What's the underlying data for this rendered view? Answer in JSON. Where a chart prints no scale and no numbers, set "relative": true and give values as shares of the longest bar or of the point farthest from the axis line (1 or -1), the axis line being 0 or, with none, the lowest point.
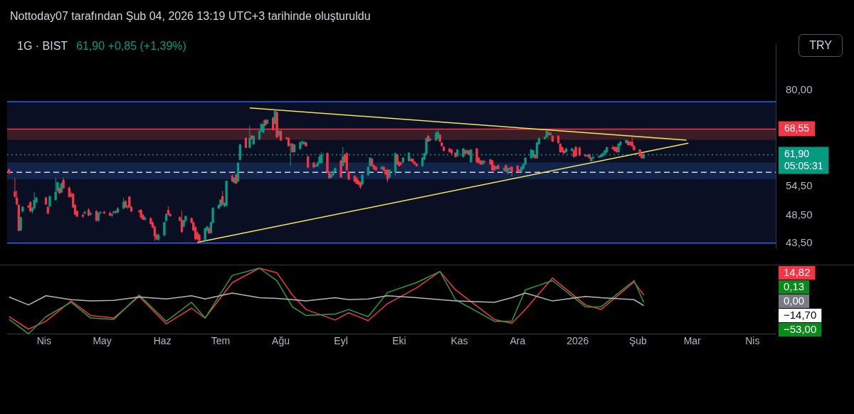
{
  "chart_data": [
    {
      "type": "candlestick",
      "title": "1G · BIST",
      "subtitle": "61,90 +0,85 (+1,39%)",
      "annotations": [
        "Nottoday07 tarafından Şub 04, 2026 13:19 UTC+3 tarihinde oluşturuldu",
        "TRY"
      ],
      "x": [
        "2025-03-14",
        "2025-03-17",
        "2025-03-18",
        "2025-03-19",
        "2025-03-20",
        "2025-03-21",
        "2025-03-24",
        "2025-03-25",
        "2025-03-26",
        "2025-03-27",
        "2025-03-28",
        "2025-04-02",
        "2025-04-03",
        "2025-04-04",
        "2025-04-07",
        "2025-04-08",
        "2025-04-09",
        "2025-04-10",
        "2025-04-11",
        "2025-04-14",
        "2025-04-15",
        "2025-04-16",
        "2025-04-17",
        "2025-04-18",
        "2025-04-21",
        "2025-04-22",
        "2025-04-24",
        "2025-04-25",
        "2025-04-28",
        "2025-04-29",
        "2025-04-30",
        "2025-05-02",
        "2025-05-05",
        "2025-05-06",
        "2025-05-07",
        "2025-05-08",
        "2025-05-09",
        "2025-05-12",
        "2025-05-13",
        "2025-05-14",
        "2025-05-15",
        "2025-05-16",
        "2025-05-20",
        "2025-05-21",
        "2025-05-22",
        "2025-05-23",
        "2025-05-26",
        "2025-05-27",
        "2025-05-28",
        "2025-05-29",
        "2025-05-30",
        "2025-06-02",
        "2025-06-03",
        "2025-06-04",
        "2025-06-05",
        "2025-06-10",
        "2025-06-11",
        "2025-06-12",
        "2025-06-13",
        "2025-06-16",
        "2025-06-17",
        "2025-06-18",
        "2025-06-19",
        "2025-06-20",
        "2025-06-23",
        "2025-06-24",
        "2025-06-25",
        "2025-06-26",
        "2025-06-27",
        "2025-06-30",
        "2025-07-01",
        "2025-07-02",
        "2025-07-03",
        "2025-07-04",
        "2025-07-07",
        "2025-07-08",
        "2025-07-09",
        "2025-07-10",
        "2025-07-11",
        "2025-07-14",
        "2025-07-16",
        "2025-07-17",
        "2025-07-18",
        "2025-07-21",
        "2025-07-22",
        "2025-07-23",
        "2025-07-24",
        "2025-07-25",
        "2025-07-28",
        "2025-07-29",
        "2025-07-30",
        "2025-07-31",
        "2025-08-01",
        "2025-08-04",
        "2025-08-05",
        "2025-08-06",
        "2025-08-07",
        "2025-08-08",
        "2025-08-11",
        "2025-08-12",
        "2025-08-13",
        "2025-08-14",
        "2025-08-15",
        "2025-08-18",
        "2025-08-19",
        "2025-08-20",
        "2025-08-21",
        "2025-08-22",
        "2025-08-25",
        "2025-08-26",
        "2025-08-27",
        "2025-08-28",
        "2025-08-29",
        "2025-09-01",
        "2025-09-02",
        "2025-09-03",
        "2025-09-04",
        "2025-09-05",
        "2025-09-08",
        "2025-09-09",
        "2025-09-10",
        "2025-09-11",
        "2025-09-12",
        "2025-09-15",
        "2025-09-16",
        "2025-09-17",
        "2025-09-18",
        "2025-09-19",
        "2025-09-22",
        "2025-09-23",
        "2025-09-24",
        "2025-09-25",
        "2025-09-26",
        "2025-09-29",
        "2025-09-30",
        "2025-10-01",
        "2025-10-02",
        "2025-10-03",
        "2025-10-06",
        "2025-10-07",
        "2025-10-08",
        "2025-10-09",
        "2025-10-10",
        "2025-10-13",
        "2025-10-14",
        "2025-10-15",
        "2025-10-16",
        "2025-10-17",
        "2025-10-20",
        "2025-10-21",
        "2025-10-22",
        "2025-10-23",
        "2025-10-24",
        "2025-10-27",
        "2025-10-28",
        "2025-10-30",
        "2025-10-31",
        "2025-11-03",
        "2025-11-04",
        "2025-11-05",
        "2025-11-06",
        "2025-11-07",
        "2025-11-10",
        "2025-11-11",
        "2025-11-12",
        "2025-11-13",
        "2025-11-14",
        "2025-11-17",
        "2025-11-18",
        "2025-11-19",
        "2025-11-20",
        "2025-11-21",
        "2025-11-24",
        "2025-11-25",
        "2025-11-26",
        "2025-11-27",
        "2025-11-28",
        "2025-12-01",
        "2025-12-02",
        "2025-12-03",
        "2025-12-04",
        "2025-12-05",
        "2025-12-08",
        "2025-12-09",
        "2025-12-10",
        "2025-12-11",
        "2025-12-12",
        "2025-12-15",
        "2025-12-16",
        "2025-12-17",
        "2025-12-18",
        "2025-12-19",
        "2025-12-22",
        "2025-12-23",
        "2025-12-24",
        "2025-12-25",
        "2025-12-26",
        "2025-12-29",
        "2025-12-30",
        "2025-12-31",
        "2026-01-02",
        "2026-01-05",
        "2026-01-06",
        "2026-01-07",
        "2026-01-08",
        "2026-01-09",
        "2026-01-12",
        "2026-01-13",
        "2026-01-14",
        "2026-01-15",
        "2026-01-16",
        "2026-01-19",
        "2026-01-20",
        "2026-01-21",
        "2026-01-22",
        "2026-01-23",
        "2026-01-26",
        "2026-01-27",
        "2026-01-28",
        "2026-01-29",
        "2026-01-30",
        "2026-02-02",
        "2026-02-03",
        "2026-02-04"
      ],
      "ohlc": [
        [
          58.3,
          58.6,
          57.2,
          57.6
        ],
        [
          53.4,
          56.4,
          52.0,
          52.4
        ],
        [
          52.1,
          53.6,
          50.6,
          50.8
        ],
        [
          50.6,
          50.8,
          45.6,
          45.7
        ],
        [
          45.8,
          48.3,
          45.6,
          48.2
        ],
        [
          49.4,
          50.5,
          49.1,
          50.2
        ],
        [
          50.4,
          50.7,
          50.0,
          50.2
        ],
        [
          51.2,
          51.4,
          49.2,
          49.4
        ],
        [
          49.4,
          50.2,
          48.9,
          50.0
        ],
        [
          50.0,
          53.3,
          49.8,
          51.6
        ],
        [
          51.2,
          52.3,
          51.0,
          52.1
        ],
        [
          52.1,
          52.4,
          50.6,
          50.8
        ],
        [
          50.2,
          50.4,
          48.8,
          49.0
        ],
        [
          50.4,
          52.6,
          50.2,
          52.4
        ],
        [
          51.7,
          56.4,
          51.5,
          53.3
        ],
        [
          53.6,
          55.6,
          53.3,
          55.4
        ],
        [
          54.2,
          54.4,
          52.9,
          53.1
        ],
        [
          53.3,
          55.3,
          53.1,
          55.2
        ],
        [
          55.9,
          56.5,
          54.0,
          54.2
        ],
        [
          54.2,
          54.6,
          52.2,
          52.3
        ],
        [
          52.9,
          53.4,
          52.2,
          52.4
        ],
        [
          52.9,
          53.1,
          50.0,
          50.2
        ],
        [
          50.6,
          50.8,
          48.6,
          48.8
        ],
        [
          49.4,
          49.6,
          48.2,
          48.4
        ],
        [
          48.6,
          48.9,
          48.1,
          48.4
        ],
        [
          49.0,
          49.5,
          48.7,
          49.2
        ],
        [
          49.6,
          50.0,
          48.4,
          48.6
        ],
        [
          48.8,
          49.2,
          48.5,
          49.0
        ],
        [
          49.4,
          49.6,
          47.4,
          47.6
        ],
        [
          47.6,
          49.2,
          47.3,
          49.0
        ],
        [
          49.1,
          49.4,
          48.8,
          49.2
        ],
        [
          49.2,
          49.5,
          48.8,
          49.0
        ],
        [
          49.0,
          49.3,
          48.4,
          48.6
        ],
        [
          48.6,
          49.0,
          48.2,
          48.8
        ],
        [
          49.1,
          49.5,
          48.9,
          49.3
        ],
        [
          49.3,
          49.6,
          48.9,
          49.1
        ],
        [
          49.2,
          50.2,
          49.0,
          49.9
        ],
        [
          50.0,
          52.1,
          49.8,
          51.2
        ],
        [
          51.4,
          51.6,
          50.0,
          50.2
        ],
        [
          50.2,
          50.6,
          49.8,
          50.4
        ],
        [
          52.3,
          52.5,
          50.0,
          50.2
        ],
        [
          50.2,
          50.4,
          49.2,
          49.4
        ],
        [
          49.4,
          49.7,
          49.0,
          49.3
        ],
        [
          49.6,
          49.8,
          48.0,
          48.2
        ],
        [
          48.6,
          48.8,
          47.7,
          47.8
        ],
        [
          47.8,
          48.4,
          47.6,
          48.1
        ],
        [
          48.0,
          48.2,
          46.8,
          47.0
        ],
        [
          47.2,
          47.4,
          46.2,
          46.3
        ],
        [
          46.4,
          46.6,
          43.9,
          44.7
        ],
        [
          44.9,
          45.2,
          44.0,
          44.2
        ],
        [
          44.1,
          45.2,
          43.9,
          44.9
        ],
        [
          44.9,
          47.4,
          44.7,
          47.2
        ],
        [
          47.6,
          48.9,
          47.3,
          48.8
        ],
        [
          49.6,
          50.4,
          48.6,
          48.8
        ],
        [
          48.8,
          49.0,
          48.3,
          48.5
        ],
        [
          48.2,
          48.4,
          47.4,
          47.6
        ],
        [
          47.6,
          49.5,
          45.3,
          45.5
        ],
        [
          46.5,
          47.8,
          46.2,
          47.6
        ],
        [
          47.6,
          48.6,
          47.3,
          48.4
        ],
        [
          48.0,
          48.2,
          47.0,
          47.2
        ],
        [
          47.2,
          47.4,
          45.6,
          45.8
        ],
        [
          46.3,
          46.5,
          44.0,
          44.2
        ],
        [
          45.3,
          45.6,
          44.0,
          44.2
        ],
        [
          44.9,
          45.1,
          43.6,
          43.9
        ],
        [
          44.0,
          46.2,
          43.8,
          46.1
        ],
        [
          45.8,
          46.6,
          45.5,
          46.4
        ],
        [
          46.1,
          46.3,
          45.1,
          45.3
        ],
        [
          45.3,
          47.4,
          45.1,
          47.2
        ],
        [
          47.2,
          50.2,
          47.0,
          50.0
        ],
        [
          50.0,
          50.8,
          49.8,
          50.6
        ],
        [
          50.4,
          51.8,
          50.2,
          51.7
        ],
        [
          52.4,
          53.6,
          50.6,
          50.8
        ],
        [
          50.4,
          51.2,
          50.2,
          51.0
        ],
        [
          50.6,
          55.8,
          50.4,
          55.7
        ],
        [
          56.8,
          57.2,
          55.5,
          55.7
        ],
        [
          55.4,
          56.6,
          55.2,
          56.4
        ],
        [
          57.1,
          57.4,
          55.0,
          55.2
        ],
        [
          55.7,
          60.0,
          55.5,
          59.9
        ],
        [
          60.7,
          64.7,
          60.5,
          64.4
        ],
        [
          66.1,
          66.4,
          63.5,
          63.7
        ],
        [
          63.7,
          69.6,
          63.5,
          66.1
        ],
        [
          66.7,
          67.0,
          65.8,
          65.9
        ],
        [
          64.6,
          66.9,
          64.4,
          66.7
        ],
        [
          65.9,
          68.2,
          65.6,
          68.0
        ],
        [
          68.0,
          70.2,
          67.8,
          69.9
        ],
        [
          67.7,
          71.0,
          67.5,
          69.9
        ],
        [
          71.0,
          71.4,
          69.4,
          69.6
        ],
        [
          70.1,
          71.3,
          69.9,
          71.1
        ],
        [
          71.7,
          72.0,
          68.2,
          68.4
        ],
        [
          70.1,
          74.3,
          69.9,
          73.7
        ],
        [
          73.3,
          73.6,
          66.1,
          66.4
        ],
        [
          66.9,
          68.2,
          66.6,
          68.0
        ],
        [
          68.0,
          68.3,
          65.4,
          65.6
        ],
        [
          66.2,
          66.5,
          65.7,
          66.0
        ],
        [
          66.1,
          66.4,
          63.9,
          64.1
        ],
        [
          64.4,
          64.9,
          59.2,
          64.6
        ],
        [
          64.6,
          64.9,
          62.4,
          62.6
        ],
        [
          62.6,
          64.6,
          62.4,
          64.4
        ],
        [
          63.4,
          65.4,
          63.2,
          64.9
        ],
        [
          64.9,
          65.6,
          64.4,
          65.1
        ],
        [
          64.6,
          65.3,
          64.4,
          65.1
        ],
        [
          64.9,
          65.2,
          63.9,
          64.1
        ],
        [
          61.4,
          61.7,
          58.6,
          58.9
        ],
        [
          59.9,
          60.2,
          58.6,
          58.9
        ],
        [
          59.1,
          59.5,
          58.9,
          59.3
        ],
        [
          59.2,
          60.2,
          59.0,
          59.9
        ],
        [
          59.9,
          61.6,
          59.7,
          61.4
        ],
        [
          59.9,
          62.6,
          59.7,
          61.9
        ],
        [
          62.2,
          62.5,
          57.5,
          57.8
        ],
        [
          57.8,
          58.0,
          56.2,
          56.4
        ],
        [
          56.6,
          57.3,
          56.3,
          57.2
        ],
        [
          57.1,
          58.1,
          56.9,
          57.9
        ],
        [
          57.9,
          58.8,
          57.7,
          58.6
        ],
        [
          60.4,
          60.7,
          56.4,
          56.6
        ],
        [
          59.3,
          63.8,
          59.1,
          61.4
        ],
        [
          61.9,
          62.2,
          59.9,
          60.1
        ],
        [
          62.2,
          62.5,
          58.0,
          58.2
        ],
        [
          57.8,
          58.0,
          55.9,
          56.1
        ],
        [
          56.8,
          57.1,
          55.5,
          55.7
        ],
        [
          56.4,
          56.7,
          55.0,
          55.2
        ],
        [
          55.8,
          56.0,
          54.8,
          55.0
        ],
        [
          55.4,
          55.6,
          54.0,
          54.4
        ],
        [
          55.0,
          57.3,
          54.8,
          57.1
        ],
        [
          57.1,
          59.1,
          56.9,
          58.9
        ],
        [
          59.2,
          61.3,
          59.0,
          61.1
        ],
        [
          60.8,
          61.1,
          59.0,
          59.2
        ],
        [
          59.3,
          59.5,
          58.3,
          58.5
        ],
        [
          58.9,
          59.2,
          58.0,
          58.2
        ],
        [
          58.5,
          59.2,
          58.3,
          58.9
        ],
        [
          58.9,
          59.2,
          58.0,
          58.2
        ],
        [
          58.2,
          58.4,
          57.0,
          57.3
        ],
        [
          58.2,
          58.5,
          55.4,
          56.1
        ],
        [
          56.6,
          58.4,
          56.3,
          58.2
        ],
        [
          57.8,
          62.4,
          57.0,
          62.2
        ],
        [
          61.9,
          62.1,
          59.4,
          59.6
        ],
        [
          60.1,
          60.3,
          59.0,
          59.2
        ],
        [
          59.9,
          60.2,
          59.4,
          59.6
        ],
        [
          60.1,
          61.3,
          59.9,
          61.1
        ],
        [
          60.4,
          62.6,
          60.2,
          62.3
        ],
        [
          60.8,
          61.2,
          60.2,
          60.4
        ],
        [
          60.8,
          61.0,
          59.9,
          60.1
        ],
        [
          60.1,
          60.3,
          59.4,
          59.6
        ],
        [
          59.6,
          59.8,
          59.0,
          59.2
        ],
        [
          59.2,
          61.3,
          59.0,
          61.1
        ],
        [
          60.8,
          62.4,
          60.6,
          62.2
        ],
        [
          62.2,
          66.3,
          62.0,
          66.1
        ],
        [
          66.7,
          67.0,
          65.1,
          65.3
        ],
        [
          65.6,
          66.1,
          65.3,
          65.9
        ],
        [
          65.6,
          68.0,
          65.4,
          67.5
        ],
        [
          66.1,
          68.4,
          65.9,
          67.7
        ],
        [
          67.0,
          67.2,
          65.1,
          65.3
        ],
        [
          64.9,
          65.1,
          63.9,
          64.1
        ],
        [
          63.8,
          64.0,
          62.7,
          62.9
        ],
        [
          63.4,
          63.6,
          62.4,
          62.6
        ],
        [
          63.1,
          63.3,
          62.1,
          62.3
        ],
        [
          62.3,
          62.5,
          61.2,
          61.4
        ],
        [
          61.6,
          63.3,
          61.4,
          63.1
        ],
        [
          61.4,
          63.6,
          61.2,
          63.4
        ],
        [
          62.9,
          63.3,
          62.0,
          62.2
        ],
        [
          62.3,
          63.2,
          62.0,
          62.9
        ],
        [
          62.9,
          63.1,
          61.7,
          61.9
        ],
        [
          60.1,
          63.3,
          59.9,
          63.1
        ],
        [
          63.4,
          63.6,
          59.9,
          60.1
        ],
        [
          61.1,
          61.3,
          59.7,
          59.9
        ],
        [
          60.4,
          60.6,
          59.4,
          59.6
        ],
        [
          59.6,
          60.6,
          59.4,
          60.4
        ],
        [
          60.2,
          60.6,
          59.9,
          60.1
        ],
        [
          60.7,
          60.9,
          59.4,
          59.6
        ],
        [
          60.4,
          60.6,
          58.0,
          58.2
        ],
        [
          59.2,
          59.4,
          58.0,
          58.2
        ],
        [
          58.5,
          59.2,
          58.3,
          59.0
        ],
        [
          59.3,
          59.5,
          58.3,
          58.5
        ],
        [
          58.2,
          58.9,
          58.0,
          58.6
        ],
        [
          59.3,
          59.5,
          57.7,
          57.9
        ],
        [
          57.5,
          58.8,
          57.3,
          58.6
        ],
        [
          58.6,
          59.0,
          58.2,
          58.4
        ],
        [
          58.9,
          59.1,
          56.8,
          57.9
        ],
        [
          59.2,
          59.4,
          57.7,
          57.9
        ],
        [
          58.2,
          58.4,
          57.6,
          57.8
        ],
        [
          57.9,
          59.1,
          57.7,
          58.9
        ],
        [
          58.6,
          59.8,
          58.4,
          59.6
        ],
        [
          59.6,
          61.3,
          59.4,
          61.1
        ],
        [
          61.1,
          63.3,
          60.9,
          63.1
        ],
        [
          61.4,
          63.1,
          61.2,
          62.9
        ],
        [
          61.9,
          62.1,
          60.9,
          61.1
        ],
        [
          61.1,
          65.1,
          60.9,
          64.9
        ],
        [
          64.6,
          66.3,
          64.4,
          66.1
        ],
        [
          66.0,
          66.6,
          65.7,
          66.4
        ],
        [
          66.4,
          68.2,
          66.2,
          68.0
        ],
        [
          67.5,
          68.2,
          66.8,
          67.0
        ],
        [
          67.0,
          67.8,
          66.8,
          67.5
        ],
        [
          66.7,
          66.9,
          65.1,
          65.3
        ],
        [
          66.7,
          67.0,
          64.7,
          64.9
        ],
        [
          64.6,
          64.8,
          62.4,
          62.6
        ],
        [
          63.7,
          63.9,
          62.4,
          62.6
        ],
        [
          62.9,
          63.1,
          62.1,
          62.3
        ],
        [
          62.6,
          63.6,
          62.4,
          63.4
        ],
        [
          62.9,
          63.6,
          62.7,
          63.4
        ],
        [
          62.9,
          63.2,
          61.2,
          61.4
        ],
        [
          63.8,
          64.1,
          61.4,
          61.6
        ],
        [
          63.6,
          63.9,
          61.5,
          61.8
        ],
        [
          61.8,
          62.1,
          61.3,
          61.6
        ],
        [
          61.6,
          62.0,
          61.4,
          61.8
        ],
        [
          61.9,
          62.1,
          60.9,
          61.1
        ],
        [
          60.4,
          61.3,
          60.2,
          61.1
        ],
        [
          61.1,
          61.5,
          60.9,
          61.3
        ],
        [
          61.3,
          61.7,
          61.1,
          61.5
        ],
        [
          61.4,
          62.1,
          61.2,
          61.9
        ],
        [
          61.6,
          62.4,
          61.4,
          62.2
        ],
        [
          62.2,
          63.1,
          62.0,
          62.9
        ],
        [
          62.6,
          63.9,
          62.4,
          63.7
        ],
        [
          63.7,
          64.3,
          63.2,
          63.4
        ],
        [
          63.8,
          64.0,
          62.7,
          62.9
        ],
        [
          63.7,
          63.9,
          62.4,
          62.6
        ],
        [
          62.6,
          64.8,
          62.4,
          64.6
        ],
        [
          64.4,
          65.4,
          64.2,
          65.1
        ],
        [
          64.9,
          65.8,
          64.7,
          65.6
        ],
        [
          65.3,
          65.6,
          64.2,
          64.4
        ],
        [
          65.1,
          65.3,
          64.2,
          64.4
        ],
        [
          65.1,
          66.4,
          63.9,
          64.1
        ],
        [
          64.1,
          64.3,
          62.9,
          63.1
        ],
        [
          63.1,
          63.3,
          61.4,
          61.6
        ],
        [
          62.2,
          62.4,
          60.9,
          61.1
        ],
        [
          61.1,
          62.3,
          60.8,
          61.9
        ]
      ],
      "series": [
        {
          "type": "line",
          "color": "#f2e55c",
          "x": [
            "2025-07-16",
            "2026-02-26"
          ],
          "values": [
            74.6,
            65.6
          ]
        },
        {
          "type": "line",
          "color": "#f2e55c",
          "x": [
            "2025-06-19",
            "2026-02-27"
          ],
          "values": [
            43.6,
            64.8
          ]
        }
      ],
      "bands": [
        {
          "axis": "y",
          "from": 43.5,
          "to": 76.5,
          "color": "#0a0f24"
        },
        {
          "axis": "y",
          "from": 65.7,
          "to": 68.55,
          "color": "#3b1e25"
        },
        {
          "axis": "y",
          "from": 56.1,
          "to": 60.0,
          "color": "#13244a"
        }
      ],
      "ref_lines": [
        {
          "axis": "y",
          "value": 76.5,
          "label": null,
          "color": "#2962ff",
          "line_style": "solid"
        },
        {
          "axis": "y",
          "value": 43.5,
          "label": null,
          "color": "#2962ff",
          "line_style": "solid"
        },
        {
          "axis": "y",
          "value": 68.55,
          "label": "68,55",
          "color": "#f23645",
          "line_style": "solid"
        },
        {
          "axis": "y",
          "value": 61.9,
          "label": "61,90\n05:05:31",
          "color": "#089981",
          "line_style": "dotted"
        },
        {
          "axis": "y",
          "value": 57.7,
          "label": null,
          "color": "#d1d4dc",
          "line_style": "dashed"
        }
      ],
      "log": true,
      "ylim": [
        42.6,
        96
      ],
      "yticks": [
        {
          "value": 43.5,
          "label": "43,50"
        },
        {
          "value": 48.5,
          "label": "48,50"
        },
        {
          "value": 54.5,
          "label": "54,50"
        },
        {
          "value": 80,
          "label": "80,00"
        }
      ],
      "xlim": [
        "2025-03-13",
        "2026-04-13"
      ],
      "tick_labels": "y",
      "legend": false,
      "grid": false
    },
    {
      "type": "line",
      "relative": true,
      "marker": "none",
      "x": [
        "2025-03-14",
        "2025-03-24",
        "2025-04-02",
        "2025-04-15",
        "2025-04-25",
        "2025-05-07",
        "2025-05-20",
        "2025-06-03",
        "2025-06-16",
        "2025-06-23",
        "2025-07-07",
        "2025-07-21",
        "2025-07-30",
        "2025-08-07",
        "2025-08-14",
        "2025-08-29",
        "2025-09-05",
        "2025-09-15",
        "2025-09-25",
        "2025-10-10",
        "2025-10-22",
        "2025-10-30",
        "2025-11-19",
        "2025-11-28",
        "2025-12-05",
        "2025-12-19",
        "2026-01-05",
        "2026-01-13",
        "2026-01-30",
        "2026-02-04"
      ],
      "series": [
        {
          "color": "#b2b5be",
          "values": [
            0.56,
            0.44,
            0.58,
            0.52,
            0.5,
            0.51,
            0.56,
            0.53,
            0.58,
            0.53,
            0.62,
            0.55,
            0.54,
            0.52,
            0.5,
            0.55,
            0.52,
            0.53,
            0.58,
            0.55,
            0.52,
            0.5,
            0.48,
            0.55,
            0.62,
            0.5,
            0.57,
            0.55,
            0.52,
            0.43
          ]
        },
        {
          "color": "#2e9e3a",
          "values": [
            0.22,
            0,
            0.26,
            0.48,
            0.24,
            0.22,
            0.59,
            0.19,
            0.48,
            0.24,
            0.89,
            1,
            0.81,
            0.41,
            0.28,
            0.3,
            0.37,
            0.26,
            0.63,
            0.78,
            0.95,
            0.52,
            0.19,
            0.19,
            0.67,
            0.81,
            0.41,
            0.41,
            0.81,
            0.48
          ]
        },
        {
          "color": "#f23645",
          "values": [
            0.26,
            0.07,
            0.19,
            0.5,
            0.28,
            0.24,
            0.57,
            0.15,
            0.39,
            0.24,
            0.78,
            1,
            0.93,
            0.59,
            0.37,
            0.21,
            0.32,
            0.2,
            0.46,
            0.7,
            0.95,
            0.67,
            0.22,
            0.16,
            0.37,
            0.85,
            0.44,
            0.37,
            0.79,
            0.59
          ]
        }
      ],
      "annotations": [
        "14,82",
        "0,13",
        "0,00",
        "−14,70",
        "−53,00"
      ],
      "xlim": [
        "2025-03-13",
        "2026-04-13"
      ],
      "xticks": [
        {
          "value": "2025-04-01",
          "label": "Nis"
        },
        {
          "value": "2025-05-01",
          "label": "May"
        },
        {
          "value": "2025-06-01",
          "label": "Haz"
        },
        {
          "value": "2025-07-01",
          "label": "Tem"
        },
        {
          "value": "2025-08-01",
          "label": "Ağu"
        },
        {
          "value": "2025-09-01",
          "label": "Eyl"
        },
        {
          "value": "2025-10-01",
          "label": "Eki"
        },
        {
          "value": "2025-11-01",
          "label": "Kas"
        },
        {
          "value": "2025-12-01",
          "label": "Ara"
        },
        {
          "value": "2026-01-01",
          "label": "2026"
        },
        {
          "value": "2026-02-01",
          "label": "Şub"
        },
        {
          "value": "2026-03-01",
          "label": "Mar"
        },
        {
          "value": "2026-04-01",
          "label": "Nis"
        }
      ],
      "legend": false,
      "grid": false
    }
  ]
}
